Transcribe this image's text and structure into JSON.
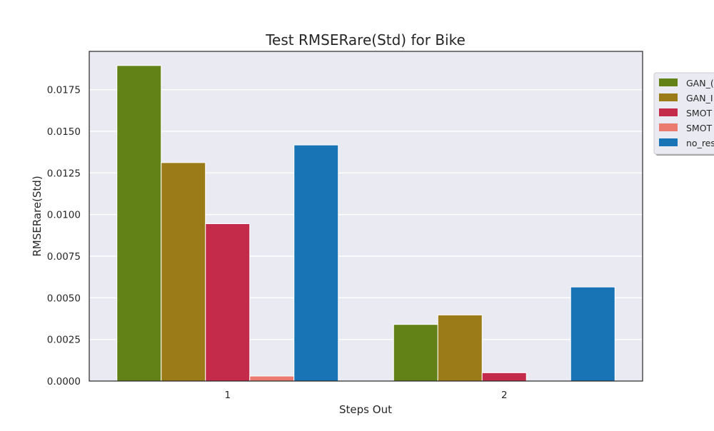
{
  "chart_data": {
    "type": "bar",
    "title": "Test RMSERare(Std) for Bike",
    "xlabel": "Steps Out",
    "ylabel": "RMSERare(Std)",
    "categories": [
      "1",
      "2"
    ],
    "ylim": [
      0,
      0.0198
    ],
    "yticks": [
      "0.0000",
      "0.0025",
      "0.0050",
      "0.0075",
      "0.0100",
      "0.0125",
      "0.0150",
      "0.0175"
    ],
    "grid": true,
    "legend_position": "right, outside plot area (clipped)",
    "series": [
      {
        "name": "GAN_(",
        "color": "#628217",
        "values": [
          0.01895,
          0.0034
        ]
      },
      {
        "name": "GAN_I",
        "color": "#9a7b17",
        "values": [
          0.01312,
          0.00397
        ]
      },
      {
        "name": "SMOT",
        "color": "#c42b4a",
        "values": [
          0.00945,
          0.0005
        ]
      },
      {
        "name": "SMOT",
        "color": "#eb7b6f",
        "values": [
          0.0003,
          0.0
        ]
      },
      {
        "name": "no_res",
        "color": "#1974b6",
        "values": [
          0.01418,
          0.00565
        ]
      }
    ]
  }
}
